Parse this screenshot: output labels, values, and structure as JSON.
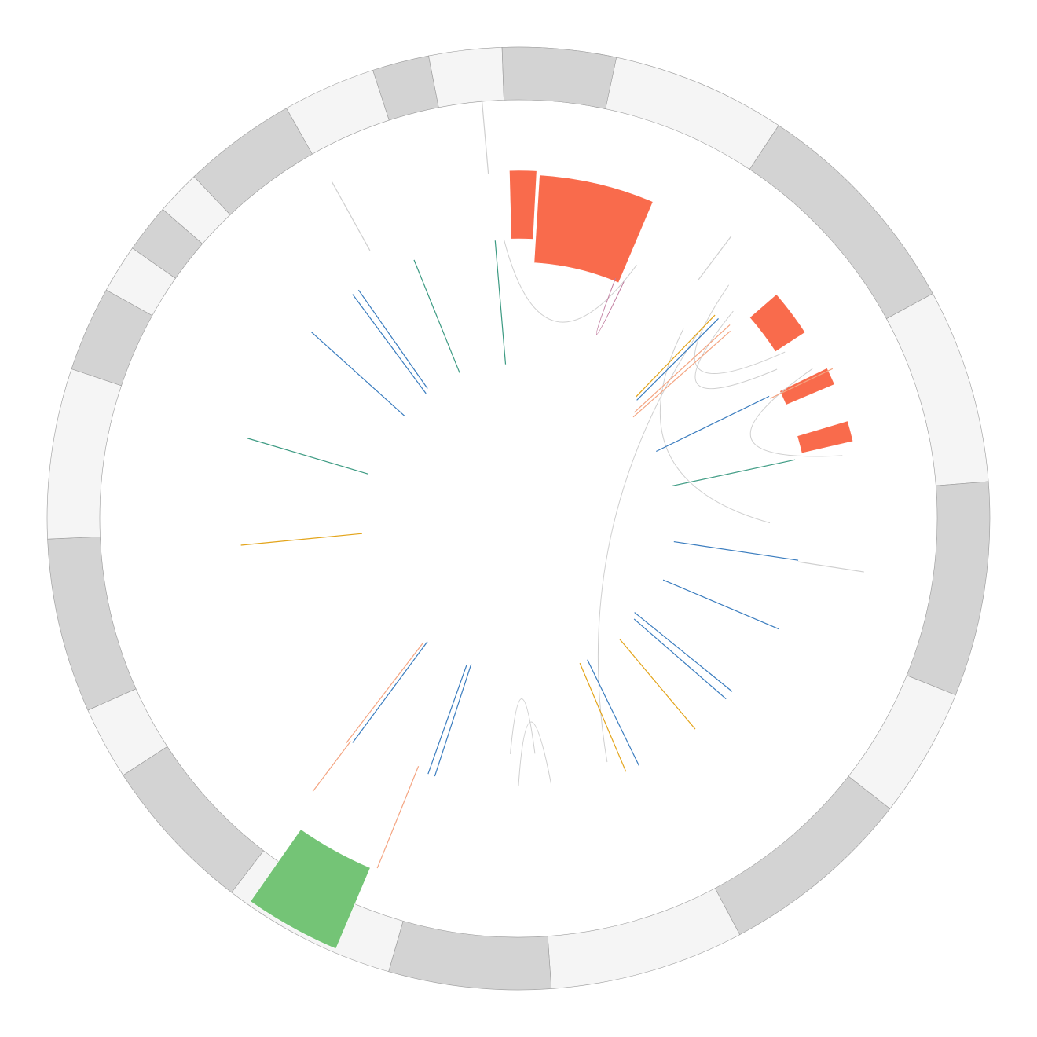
{
  "chart_data": {
    "type": "circos",
    "colors": {
      "ideogram_light": "#f5f5f5",
      "ideogram_dark": "#d3d3d3",
      "ideogram_stroke": "#9a9a9a",
      "highlight_red": "#f96b4c",
      "highlight_green": "#74c476",
      "link_blue": "#3b7dbf",
      "link_teal": "#3c9a82",
      "link_gold": "#e3a41a",
      "link_pink": "#c07a9e",
      "link_salmon": "#f4a582",
      "link_gray": "#cfcfcf"
    },
    "ideogram": [
      {
        "start": -2.0,
        "end": 33.5,
        "shade": "light"
      },
      {
        "start": 33.5,
        "end": 61.5,
        "shade": "dark"
      },
      {
        "start": 61.5,
        "end": 85.5,
        "shade": "light"
      },
      {
        "start": 85.5,
        "end": 112.0,
        "shade": "dark"
      },
      {
        "start": 112.0,
        "end": 128.0,
        "shade": "light"
      },
      {
        "start": 128.0,
        "end": 152.0,
        "shade": "dark"
      },
      {
        "start": 152.0,
        "end": 176.0,
        "shade": "light"
      },
      {
        "start": 176.0,
        "end": 196.0,
        "shade": "dark"
      },
      {
        "start": 196.0,
        "end": 217.5,
        "shade": "light"
      },
      {
        "start": 217.5,
        "end": 237.0,
        "shade": "dark"
      },
      {
        "start": 237.0,
        "end": 246.0,
        "shade": "light"
      },
      {
        "start": 246.0,
        "end": 267.5,
        "shade": "dark"
      },
      {
        "start": 267.5,
        "end": 288.5,
        "shade": "light"
      },
      {
        "start": 288.5,
        "end": 299.0,
        "shade": "dark"
      },
      {
        "start": 299.0,
        "end": 305.0,
        "shade": "light"
      },
      {
        "start": 305.0,
        "end": 311.0,
        "shade": "dark"
      },
      {
        "start": 311.0,
        "end": 316.5,
        "shade": "light"
      },
      {
        "start": 316.5,
        "end": 330.5,
        "shade": "dark"
      },
      {
        "start": 330.5,
        "end": 342.0,
        "shade": "light"
      },
      {
        "start": 342.0,
        "end": 349.0,
        "shade": "dark"
      },
      {
        "start": 349.0,
        "end": 358.0,
        "shade": "light"
      },
      {
        "start": 358.0,
        "end": 372.0,
        "shade": "dark"
      }
    ],
    "highlights": [
      {
        "start": 3.5,
        "end": 23.0,
        "r_in": 326,
        "r_out": 438,
        "color": "red"
      },
      {
        "start": 49.0,
        "end": 57.0,
        "r_in": 390,
        "r_out": 435,
        "color": "red"
      },
      {
        "start": 64.0,
        "end": 67.0,
        "r_in": 370,
        "r_out": 437,
        "color": "red"
      },
      {
        "start": 73.5,
        "end": 77.0,
        "r_in": 370,
        "r_out": 437,
        "color": "red"
      },
      {
        "start": 203.0,
        "end": 215.0,
        "r_in": 483,
        "r_out": 595,
        "color": "green"
      },
      {
        "start": -1.5,
        "end": 3.0,
        "r_in": 356,
        "r_out": 443,
        "color": "red"
      }
    ],
    "radial_links": [
      {
        "angle": -4.8,
        "r_in": 197,
        "r_out": 355,
        "color": "teal"
      },
      {
        "angle": -22.0,
        "r_in": 200,
        "r_out": 355,
        "color": "teal"
      },
      {
        "angle": -35.0,
        "r_in": 202,
        "r_out": 355,
        "color": "blue"
      },
      {
        "angle": -36.5,
        "r_in": 198,
        "r_out": 355,
        "color": "blue"
      },
      {
        "angle": -48.0,
        "r_in": 195,
        "r_out": 355,
        "color": "blue"
      },
      {
        "angle": -73.5,
        "r_in": 200,
        "r_out": 360,
        "color": "teal"
      },
      {
        "angle": -95.5,
        "r_in": 200,
        "r_out": 355,
        "color": "gold"
      },
      {
        "angle": 44.0,
        "r_in": 215,
        "r_out": 360,
        "color": "gold"
      },
      {
        "angle": 45.0,
        "r_in": 213,
        "r_out": 360,
        "color": "blue"
      },
      {
        "angle": 47.5,
        "r_in": 200,
        "r_out": 365,
        "color": "salmon"
      },
      {
        "angle": 48.5,
        "r_in": 195,
        "r_out": 360,
        "color": "salmon"
      },
      {
        "angle": 64.0,
        "r_in": 195,
        "r_out": 355,
        "color": "blue"
      },
      {
        "angle": 64.5,
        "r_in": 355,
        "r_out": 443,
        "color": "salmon"
      },
      {
        "angle": 78.0,
        "r_in": 200,
        "r_out": 360,
        "color": "teal"
      },
      {
        "angle": 98.5,
        "r_in": 200,
        "r_out": 360,
        "color": "blue"
      },
      {
        "angle": 98.8,
        "r_in": 360,
        "r_out": 445,
        "color": "gray"
      },
      {
        "angle": 113.0,
        "r_in": 200,
        "r_out": 360,
        "color": "blue"
      },
      {
        "angle": 129.0,
        "r_in": 190,
        "r_out": 350,
        "color": "blue"
      },
      {
        "angle": 131.0,
        "r_in": 195,
        "r_out": 350,
        "color": "blue"
      },
      {
        "angle": 140.0,
        "r_in": 200,
        "r_out": 350,
        "color": "gold"
      },
      {
        "angle": 154.0,
        "r_in": 200,
        "r_out": 350,
        "color": "blue"
      },
      {
        "angle": 157.0,
        "r_in": 200,
        "r_out": 350,
        "color": "gold"
      },
      {
        "angle": 198.0,
        "r_in": 195,
        "r_out": 345,
        "color": "blue"
      },
      {
        "angle": 199.5,
        "r_in": 198,
        "r_out": 345,
        "color": "blue"
      },
      {
        "angle": 202.0,
        "r_in": 340,
        "r_out": 480,
        "color": "salmon"
      },
      {
        "angle": 216.5,
        "r_in": 195,
        "r_out": 355,
        "color": "blue"
      },
      {
        "angle": 217.0,
        "r_in": 355,
        "r_out": 435,
        "color": "salmon"
      },
      {
        "angle": 217.5,
        "r_in": 200,
        "r_out": 360,
        "color": "salmon"
      },
      {
        "angle": 331.0,
        "r_in": 390,
        "r_out": 490,
        "color": "gray"
      },
      {
        "angle": 355.0,
        "r_in": 440,
        "r_out": 535,
        "color": "gray"
      },
      {
        "angle": 37.0,
        "r_in": 380,
        "r_out": 450,
        "color": "gray"
      }
    ],
    "chords": [
      {
        "a": -3.0,
        "b": 25.0,
        "r": 356,
        "color": "gray"
      },
      {
        "a": 22.0,
        "b": 24.0,
        "r": 330,
        "color": "pink"
      },
      {
        "a": 41.0,
        "b": 91.0,
        "r": 320,
        "color": "gray"
      },
      {
        "a": 42.0,
        "b": 58.0,
        "r": 400,
        "color": "gray"
      },
      {
        "a": 44.0,
        "b": 160.0,
        "r": 330,
        "color": "gray"
      },
      {
        "a": 46.0,
        "b": 60.0,
        "r": 380,
        "color": "gray"
      },
      {
        "a": 63.0,
        "b": 79.0,
        "r": 420,
        "color": "gray"
      },
      {
        "a": 173.0,
        "b": 180.0,
        "r": 340,
        "color": "gray"
      },
      {
        "a": 176.0,
        "b": 182.0,
        "r": 300,
        "color": "gray"
      }
    ]
  }
}
